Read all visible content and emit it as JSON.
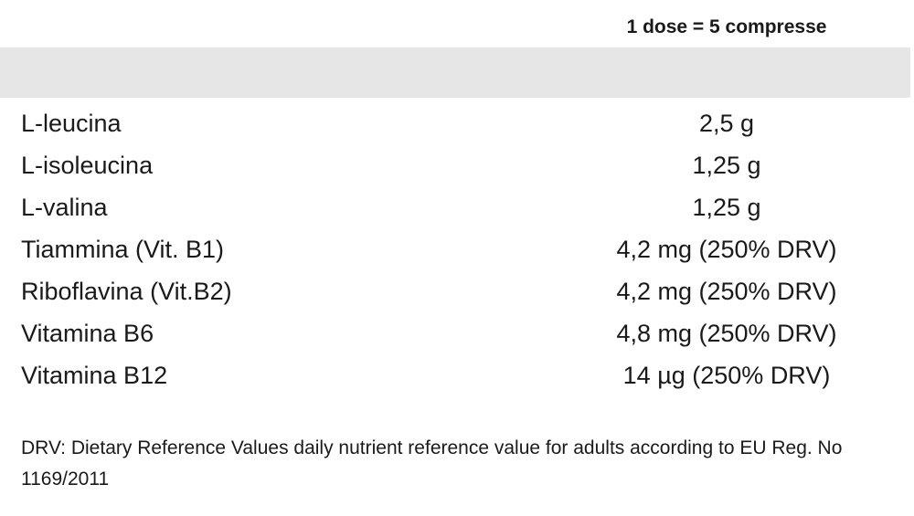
{
  "table": {
    "header": {
      "value_column": "1 dose = 5 compresse"
    },
    "rows": [
      {
        "name": "L-leucina",
        "value": "2,5 g"
      },
      {
        "name": "L-isoleucina",
        "value": "1,25 g"
      },
      {
        "name": "L-valina",
        "value": "1,25 g"
      },
      {
        "name": "Tiammina (Vit. B1)",
        "value": "4,2 mg (250% DRV)"
      },
      {
        "name": "Riboflavina (Vit.B2)",
        "value": "4,2 mg (250% DRV)"
      },
      {
        "name": "Vitamina B6",
        "value": "4,8 mg (250% DRV)"
      },
      {
        "name": "Vitamina B12",
        "value": "14 µg (250% DRV)"
      }
    ]
  },
  "footnote": "DRV: Dietary Reference Values daily nutrient reference value for adults according to EU Reg. No 1169/2011",
  "colors": {
    "band": "#e6e6e6",
    "text": "#1a1a1a"
  }
}
